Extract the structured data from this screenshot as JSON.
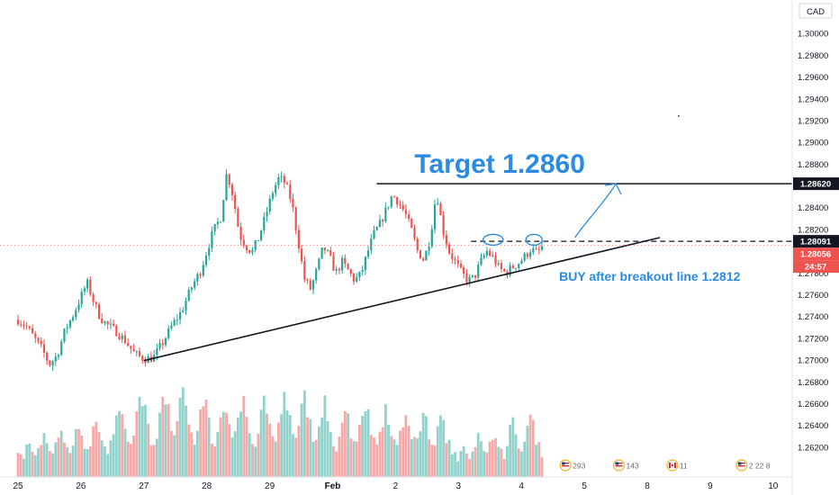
{
  "chart_data": {
    "type": "candlestick",
    "currency": "CAD",
    "title": "",
    "xlabel": "",
    "ylabel": "",
    "ylim": [
      1.2605,
      1.302
    ],
    "y_ticks": [
      "1.30000",
      "1.29800",
      "1.29600",
      "1.29400",
      "1.29200",
      "1.29000",
      "1.28800",
      "1.28620",
      "1.28400",
      "1.28200",
      "1.28091",
      "1.28056",
      "1.27800",
      "1.27600",
      "1.27400",
      "1.27200",
      "1.27000",
      "1.26800",
      "1.26600",
      "1.26400",
      "1.26200"
    ],
    "x_ticks": [
      "25",
      "26",
      "27",
      "28",
      "29",
      "Feb",
      "2",
      "3",
      "4",
      "5",
      "8",
      "9",
      "10"
    ],
    "x_tick_values": [
      0,
      1,
      2,
      3,
      4,
      5,
      6,
      7,
      8,
      9,
      10,
      11,
      12
    ],
    "price_badges": [
      {
        "label": "1.28620",
        "value": 1.2862,
        "style": "dark"
      },
      {
        "label": "1.28091",
        "value": 1.28091,
        "style": "dark"
      },
      {
        "label": "1.28056",
        "value": 1.28056,
        "style": "red"
      },
      {
        "label": "24:57",
        "value": 1.2795,
        "style": "red"
      }
    ],
    "path_points": [
      [
        0.0,
        1.2737
      ],
      [
        0.12,
        1.2732
      ],
      [
        0.25,
        1.2721
      ],
      [
        0.38,
        1.271
      ],
      [
        0.5,
        1.2696
      ],
      [
        0.62,
        1.2704
      ],
      [
        0.75,
        1.2728
      ],
      [
        0.88,
        1.2742
      ],
      [
        1.0,
        1.2758
      ],
      [
        1.1,
        1.2771
      ],
      [
        1.2,
        1.2754
      ],
      [
        1.3,
        1.274
      ],
      [
        1.4,
        1.2733
      ],
      [
        1.55,
        1.2727
      ],
      [
        1.7,
        1.2718
      ],
      [
        1.85,
        1.2706
      ],
      [
        2.0,
        1.2701
      ],
      [
        2.15,
        1.2702
      ],
      [
        2.3,
        1.2716
      ],
      [
        2.45,
        1.2732
      ],
      [
        2.6,
        1.2745
      ],
      [
        2.75,
        1.2766
      ],
      [
        2.9,
        1.2782
      ],
      [
        3.0,
        1.28
      ],
      [
        3.1,
        1.2818
      ],
      [
        3.22,
        1.2831
      ],
      [
        3.32,
        1.2873
      ],
      [
        3.42,
        1.285
      ],
      [
        3.52,
        1.2815
      ],
      [
        3.62,
        1.2805
      ],
      [
        3.72,
        1.2799
      ],
      [
        3.82,
        1.2812
      ],
      [
        3.92,
        1.283
      ],
      [
        4.05,
        1.2855
      ],
      [
        4.15,
        1.2868
      ],
      [
        4.25,
        1.2862
      ],
      [
        4.35,
        1.2845
      ],
      [
        4.45,
        1.281
      ],
      [
        4.55,
        1.2775
      ],
      [
        4.65,
        1.2765
      ],
      [
        4.75,
        1.2783
      ],
      [
        4.85,
        1.2804
      ],
      [
        4.95,
        1.2795
      ],
      [
        5.05,
        1.278
      ],
      [
        5.15,
        1.279
      ],
      [
        5.25,
        1.2782
      ],
      [
        5.35,
        1.2773
      ],
      [
        5.45,
        1.2779
      ],
      [
        5.55,
        1.2798
      ],
      [
        5.65,
        1.2815
      ],
      [
        5.75,
        1.2825
      ],
      [
        5.85,
        1.2838
      ],
      [
        5.95,
        1.2852
      ],
      [
        6.05,
        1.2845
      ],
      [
        6.15,
        1.2835
      ],
      [
        6.25,
        1.282
      ],
      [
        6.35,
        1.28
      ],
      [
        6.45,
        1.2792
      ],
      [
        6.55,
        1.2812
      ],
      [
        6.65,
        1.2855
      ],
      [
        6.75,
        1.282
      ],
      [
        6.85,
        1.28
      ],
      [
        6.95,
        1.279
      ],
      [
        7.05,
        1.278
      ],
      [
        7.15,
        1.2773
      ],
      [
        7.25,
        1.2776
      ],
      [
        7.35,
        1.279
      ],
      [
        7.45,
        1.28
      ],
      [
        7.55,
        1.2794
      ],
      [
        7.65,
        1.2784
      ],
      [
        7.75,
        1.278
      ],
      [
        7.85,
        1.2785
      ],
      [
        7.95,
        1.2789
      ],
      [
        8.05,
        1.2795
      ],
      [
        8.15,
        1.2802
      ],
      [
        8.25,
        1.2798
      ],
      [
        8.35,
        1.2806
      ]
    ],
    "volume_levels": [
      0.18,
      0.22,
      0.14,
      0.26,
      0.31,
      0.2,
      0.17,
      0.24,
      0.29,
      0.35,
      0.28,
      0.21,
      0.19,
      0.27,
      0.33,
      0.38,
      0.3,
      0.23,
      0.18,
      0.25,
      0.4,
      0.45,
      0.36,
      0.28,
      0.22,
      0.3,
      0.42,
      0.5,
      0.44,
      0.32,
      0.26,
      0.2,
      0.28,
      0.37,
      0.46,
      0.58,
      0.62,
      0.48,
      0.34,
      0.27,
      0.38,
      0.52,
      0.66,
      0.71,
      0.55,
      0.4,
      0.3,
      0.24,
      0.35,
      0.5,
      0.63,
      0.7,
      0.58,
      0.42,
      0.33,
      0.46,
      0.6,
      0.74,
      0.68,
      0.5,
      0.36,
      0.28,
      0.4,
      0.55,
      0.67,
      0.6,
      0.44,
      0.32,
      0.26,
      0.38,
      0.52,
      0.64,
      0.56,
      0.41,
      0.3,
      0.35,
      0.48,
      0.6,
      0.7,
      0.58,
      0.43,
      0.32,
      0.27,
      0.4,
      0.54,
      0.66,
      0.6,
      0.45,
      0.34,
      0.3,
      0.42,
      0.56,
      0.68,
      0.62,
      0.47,
      0.36,
      0.3,
      0.44,
      0.58,
      0.7,
      0.6,
      0.46,
      0.35,
      0.28,
      0.38,
      0.5,
      0.62,
      0.55,
      0.4,
      0.3,
      0.25,
      0.36,
      0.48,
      0.58,
      0.5,
      0.38,
      0.3,
      0.34,
      0.46,
      0.56,
      0.62,
      0.52,
      0.4,
      0.32,
      0.28,
      0.4,
      0.5,
      0.6,
      0.52,
      0.4,
      0.3,
      0.26,
      0.35,
      0.46,
      0.55,
      0.48,
      0.36,
      0.3,
      0.33,
      0.44,
      0.52,
      0.46,
      0.36,
      0.28,
      0.3,
      0.4,
      0.5,
      0.44,
      0.34,
      0.28
    ],
    "trendline": {
      "from": [
        2.0,
        1.26995
      ],
      "to": [
        10.2,
        1.28125
      ]
    },
    "resistance_line": {
      "from": [
        5.7,
        1.2862
      ],
      "to": [
        12.6,
        1.2862
      ]
    },
    "breakout_line": {
      "from": [
        7.2,
        1.28091
      ],
      "to": [
        12.6,
        1.28091
      ]
    },
    "annotations": [
      {
        "text": "Target 1.2860",
        "color": "#2a8be0"
      },
      {
        "text": "BUY after breakout line 1.2812",
        "color": "#2a8be0"
      }
    ],
    "events": [
      {
        "icon": "flag-us",
        "count": "293"
      },
      {
        "icon": "flag-us",
        "count": "143"
      },
      {
        "icon": "flag-ca",
        "count": "11"
      },
      {
        "icon": "flag-us",
        "count": "2 22 8"
      }
    ],
    "grid": false,
    "colors": {
      "up": "#26a69a",
      "down": "#ef5350",
      "line": "#131722",
      "annotation": "#2a8be0",
      "badge": "#131722"
    }
  }
}
